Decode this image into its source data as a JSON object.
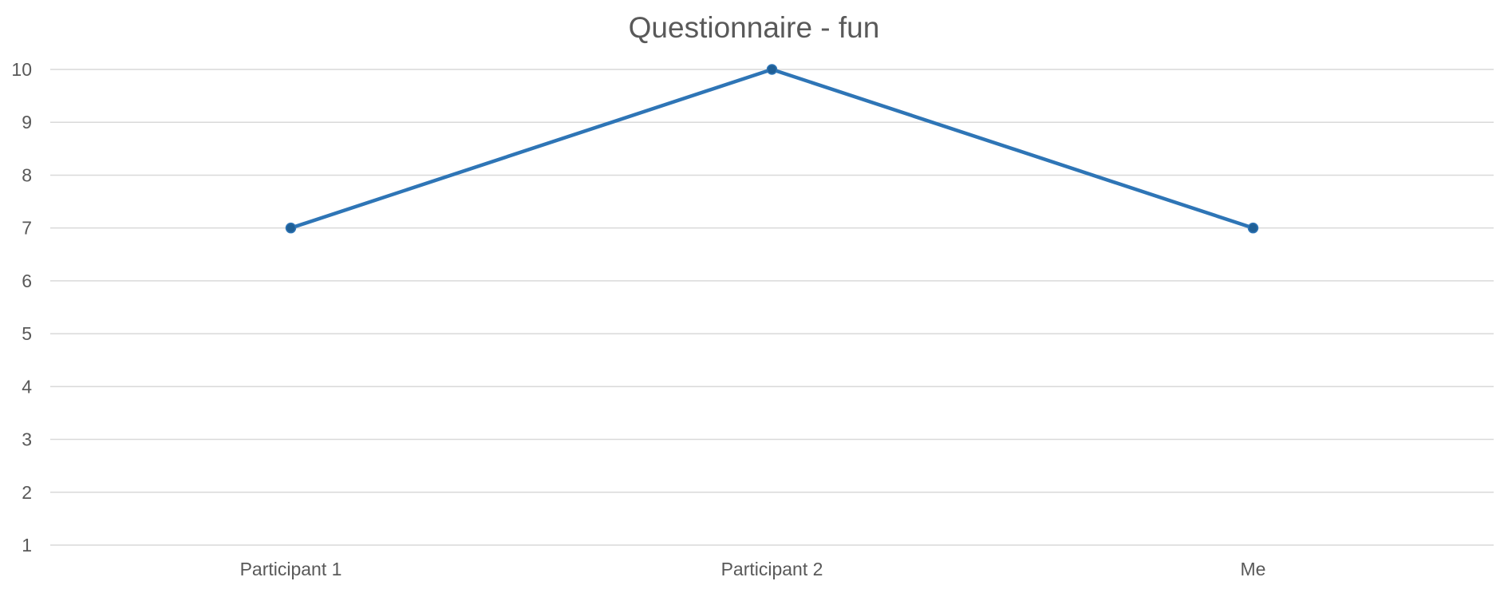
{
  "chart_data": {
    "type": "line",
    "title": "Questionnaire - fun",
    "xlabel": "",
    "ylabel": "",
    "categories": [
      "Participant 1",
      "Participant 2",
      "Me"
    ],
    "series": [
      {
        "values": [
          7,
          10,
          7
        ],
        "color": "#2E75B6",
        "marker": "circle"
      }
    ],
    "ylim": [
      1,
      10
    ],
    "yticks": [
      1,
      2,
      3,
      4,
      5,
      6,
      7,
      8,
      9,
      10
    ],
    "grid": true,
    "legend": "none"
  }
}
